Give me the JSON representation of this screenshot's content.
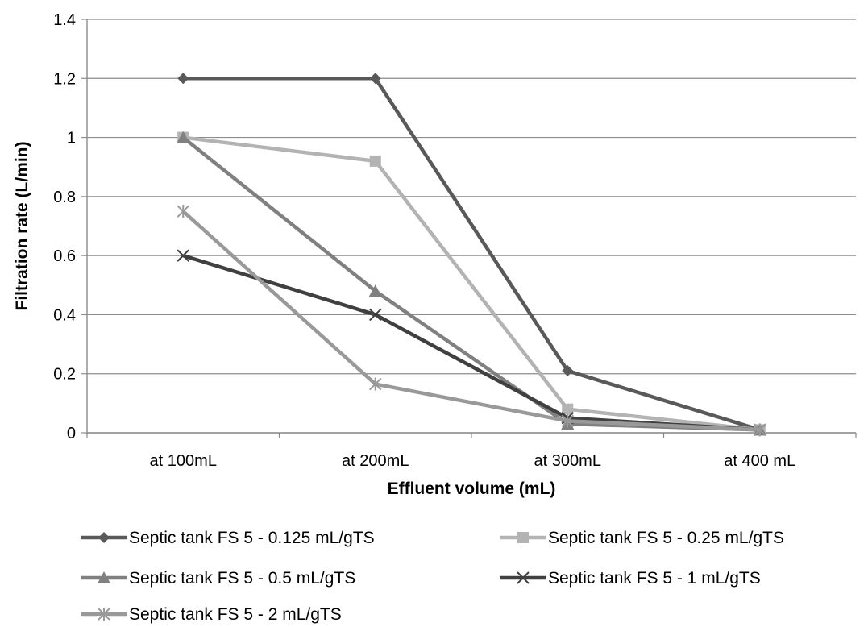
{
  "chart_data": {
    "type": "line",
    "title": "",
    "xlabel": "Effluent volume (mL)",
    "ylabel": "Filtration rate (L/min)",
    "categories": [
      "at 100mL",
      "at 200mL",
      "at 300mL",
      "at 400 mL"
    ],
    "ylim": [
      0,
      1.4
    ],
    "yticks": [
      "0",
      "0.2",
      "0.4",
      "0.6",
      "0.8",
      "1",
      "1.2",
      "1.4"
    ],
    "grid": true,
    "legend_position": "bottom",
    "series": [
      {
        "name": "Septic tank FS 5 - 0.125 mL/gTS",
        "marker": "diamond",
        "color": "#595959",
        "values": [
          1.2,
          1.2,
          0.21,
          0.01
        ]
      },
      {
        "name": "Septic tank FS 5 - 0.25 mL/gTS",
        "marker": "square",
        "color": "#b3b3b3",
        "values": [
          1.0,
          0.92,
          0.08,
          0.01
        ]
      },
      {
        "name": "Septic tank FS 5 - 0.5 mL/gTS",
        "marker": "triangle",
        "color": "#808080",
        "values": [
          1.0,
          0.48,
          0.03,
          0.01
        ]
      },
      {
        "name": "Septic tank FS 5 - 1 mL/gTS",
        "marker": "x",
        "color": "#404040",
        "values": [
          0.6,
          0.4,
          0.05,
          0.01
        ]
      },
      {
        "name": "Septic tank FS 5 - 2 mL/gTS",
        "marker": "star",
        "color": "#999999",
        "values": [
          0.75,
          0.165,
          0.04,
          0.01
        ]
      }
    ]
  }
}
